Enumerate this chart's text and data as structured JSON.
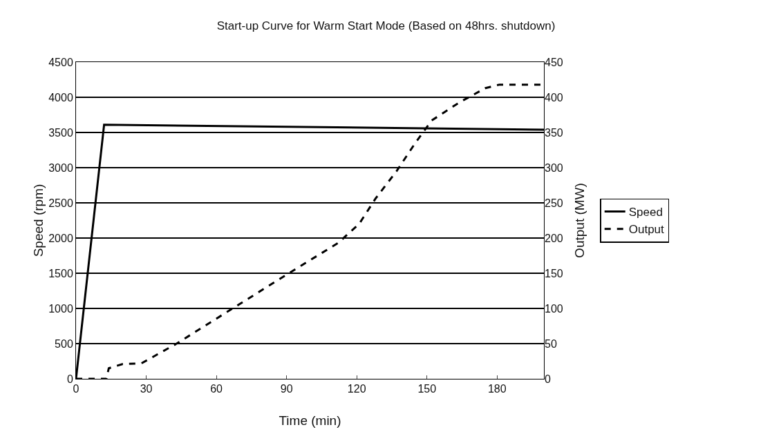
{
  "chart_data": {
    "type": "line",
    "title": "Start-up Curve for Warm Start Mode (Based on 48hrs. shutdown)",
    "xlabel": "Time (min)",
    "ylabel": "Speed (rpm)",
    "y2label": "Output (MW)",
    "xlim": [
      0,
      200
    ],
    "xticks": [
      0,
      30,
      60,
      90,
      120,
      150,
      180
    ],
    "ylim": [
      0,
      4500
    ],
    "yticks": [
      0,
      500,
      1000,
      1500,
      2000,
      2500,
      3000,
      3500,
      4000,
      4500
    ],
    "y2lim": [
      0,
      450
    ],
    "y2ticks": [
      0,
      50,
      100,
      150,
      200,
      250,
      300,
      350,
      400,
      450
    ],
    "grid": "y",
    "legend": "right",
    "series": [
      {
        "name": "Speed",
        "color": "#000000",
        "line_style": "solid",
        "x": [
          0,
          12,
          200
        ],
        "values": [
          0,
          3610,
          3540
        ]
      },
      {
        "name": "Output",
        "color": "#000000",
        "line_style": "dashed",
        "axis": "y2",
        "x": [
          0,
          13,
          14,
          20,
          28,
          43,
          66,
          90,
          112,
          121,
          128,
          137,
          145,
          152,
          164,
          175,
          181,
          200
        ],
        "values": [
          0,
          0,
          15,
          21,
          22,
          50,
          98,
          148,
          193,
          220,
          256,
          295,
          335,
          367,
          393,
          413,
          418,
          418
        ]
      }
    ]
  }
}
